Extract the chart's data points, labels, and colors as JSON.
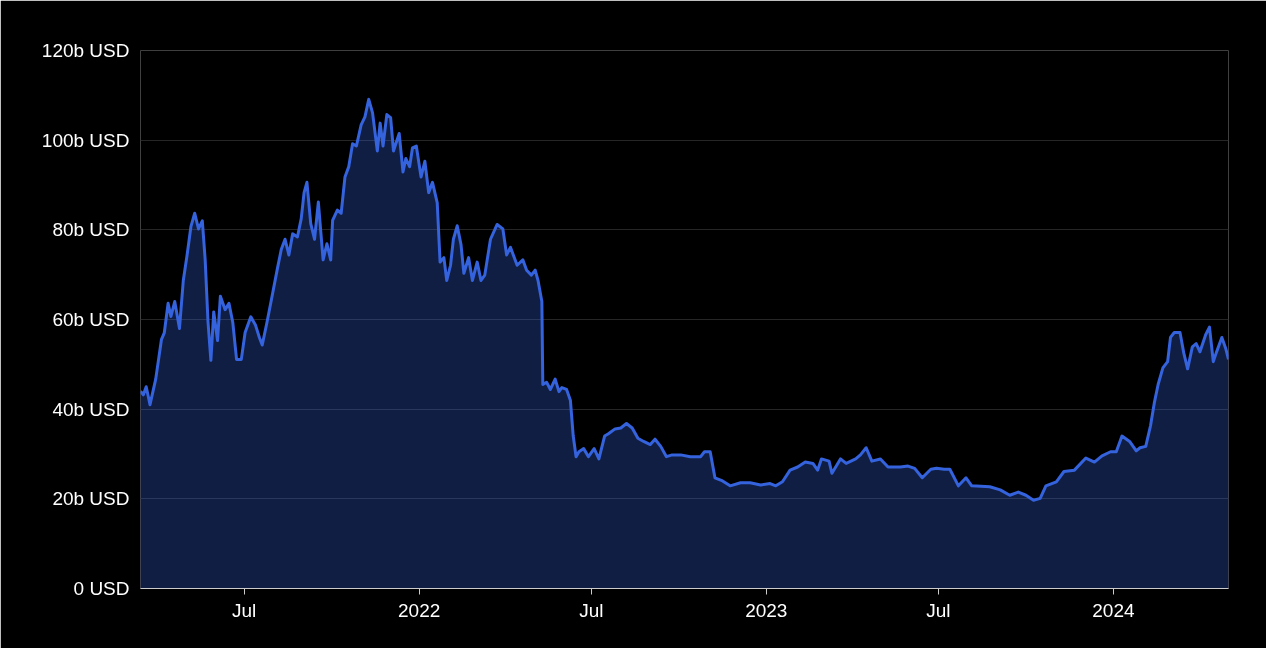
{
  "chart_data": {
    "type": "area",
    "grid": "y",
    "xlim": [
      "2021-03-14",
      "2024-05-01"
    ],
    "xticks": [
      {
        "value": "2021-07-01",
        "label": "Jul"
      },
      {
        "value": "2022-01-01",
        "label": "2022"
      },
      {
        "value": "2022-07-01",
        "label": "Jul"
      },
      {
        "value": "2023-01-01",
        "label": "2023"
      },
      {
        "value": "2023-07-01",
        "label": "Jul"
      },
      {
        "value": "2024-01-01",
        "label": "2024"
      }
    ],
    "ylim": [
      0,
      120
    ],
    "yticks": [
      {
        "value": 0,
        "label": "0 USD"
      },
      {
        "value": 20,
        "label": "20b USD"
      },
      {
        "value": 40,
        "label": "40b USD"
      },
      {
        "value": 60,
        "label": "60b USD"
      },
      {
        "value": 80,
        "label": "80b USD"
      },
      {
        "value": 100,
        "label": "100b USD"
      },
      {
        "value": 120,
        "label": "120b USD"
      }
    ],
    "x": [
      "2021-03-14",
      "2021-03-17",
      "2021-03-20",
      "2021-03-24",
      "2021-03-30",
      "2021-04-05",
      "2021-04-08",
      "2021-04-12",
      "2021-04-15",
      "2021-04-19",
      "2021-04-24",
      "2021-04-28",
      "2021-05-02",
      "2021-05-06",
      "2021-05-10",
      "2021-05-14",
      "2021-05-18",
      "2021-05-21",
      "2021-05-24",
      "2021-05-27",
      "2021-05-30",
      "2021-06-03",
      "2021-06-06",
      "2021-06-11",
      "2021-06-15",
      "2021-06-19",
      "2021-06-23",
      "2021-06-28",
      "2021-07-02",
      "2021-07-08",
      "2021-07-13",
      "2021-07-17",
      "2021-07-20",
      "2021-07-25",
      "2021-07-31",
      "2021-08-05",
      "2021-08-09",
      "2021-08-13",
      "2021-08-17",
      "2021-08-21",
      "2021-08-26",
      "2021-08-30",
      "2021-09-02",
      "2021-09-05",
      "2021-09-09",
      "2021-09-13",
      "2021-09-17",
      "2021-09-22",
      "2021-09-26",
      "2021-09-30",
      "2021-10-02",
      "2021-10-07",
      "2021-10-11",
      "2021-10-15",
      "2021-10-19",
      "2021-10-23",
      "2021-10-27",
      "2021-11-01",
      "2021-11-05",
      "2021-11-09",
      "2021-11-13",
      "2021-11-18",
      "2021-11-21",
      "2021-11-24",
      "2021-11-28",
      "2021-12-02",
      "2021-12-05",
      "2021-12-11",
      "2021-12-15",
      "2021-12-18",
      "2021-12-22",
      "2021-12-25",
      "2021-12-29",
      "2022-01-03",
      "2022-01-07",
      "2022-01-11",
      "2022-01-15",
      "2022-01-20",
      "2022-01-23",
      "2022-01-27",
      "2022-01-30",
      "2022-02-03",
      "2022-02-06",
      "2022-02-10",
      "2022-02-14",
      "2022-02-17",
      "2022-02-22",
      "2022-02-26",
      "2022-03-03",
      "2022-03-07",
      "2022-03-11",
      "2022-03-17",
      "2022-03-24",
      "2022-03-30",
      "2022-04-03",
      "2022-04-07",
      "2022-04-14",
      "2022-04-20",
      "2022-04-24",
      "2022-04-29",
      "2022-05-03",
      "2022-05-06",
      "2022-05-10",
      "2022-05-11",
      "2022-05-15",
      "2022-05-19",
      "2022-05-24",
      "2022-05-28",
      "2022-05-31",
      "2022-06-05",
      "2022-06-09",
      "2022-06-12",
      "2022-06-15",
      "2022-06-18",
      "2022-06-23",
      "2022-06-28",
      "2022-07-04",
      "2022-07-09",
      "2022-07-15",
      "2022-07-19",
      "2022-07-26",
      "2022-08-01",
      "2022-08-07",
      "2022-08-13",
      "2022-08-19",
      "2022-08-25",
      "2022-09-01",
      "2022-09-06",
      "2022-09-12",
      "2022-09-18",
      "2022-09-24",
      "2022-10-03",
      "2022-10-13",
      "2022-10-24",
      "2022-10-28",
      "2022-11-03",
      "2022-11-08",
      "2022-11-16",
      "2022-11-24",
      "2022-12-05",
      "2022-12-15",
      "2022-12-26",
      "2023-01-05",
      "2023-01-11",
      "2023-01-18",
      "2023-01-26",
      "2023-02-03",
      "2023-02-11",
      "2023-02-19",
      "2023-02-24",
      "2023-02-28",
      "2023-03-08",
      "2023-03-11",
      "2023-03-20",
      "2023-03-26",
      "2023-04-05",
      "2023-04-10",
      "2023-04-16",
      "2023-04-22",
      "2023-05-01",
      "2023-05-09",
      "2023-05-22",
      "2023-05-30",
      "2023-06-06",
      "2023-06-14",
      "2023-06-23",
      "2023-06-29",
      "2023-07-07",
      "2023-07-13",
      "2023-07-22",
      "2023-07-30",
      "2023-08-05",
      "2023-08-24",
      "2023-09-04",
      "2023-09-14",
      "2023-09-23",
      "2023-10-01",
      "2023-10-09",
      "2023-10-16",
      "2023-10-22",
      "2023-11-02",
      "2023-11-10",
      "2023-11-21",
      "2023-12-03",
      "2023-12-12",
      "2023-12-20",
      "2023-12-29",
      "2024-01-04",
      "2024-01-10",
      "2024-01-18",
      "2024-01-25",
      "2024-01-29",
      "2024-02-04",
      "2024-02-09",
      "2024-02-13",
      "2024-02-17",
      "2024-02-22",
      "2024-02-27",
      "2024-03-01",
      "2024-03-05",
      "2024-03-11",
      "2024-03-15",
      "2024-03-19",
      "2024-03-24",
      "2024-03-28",
      "2024-04-01",
      "2024-04-07",
      "2024-04-11",
      "2024-04-15",
      "2024-04-18",
      "2024-04-24",
      "2024-04-28",
      "2024-05-01"
    ],
    "series": [
      {
        "color": "#3463dd",
        "values": [
          44,
          43.2,
          45,
          41,
          46.7,
          55.5,
          57,
          63.6,
          60.7,
          64,
          58,
          68.7,
          74.4,
          80.7,
          83.7,
          80.2,
          82,
          73.3,
          59.4,
          50.9,
          61.7,
          55.3,
          65.2,
          62.2,
          63.6,
          59.4,
          51.1,
          51.1,
          57.1,
          60.6,
          58.7,
          56,
          54.3,
          59.4,
          65.9,
          71.4,
          75.6,
          77.9,
          74.4,
          79.1,
          78.4,
          82.5,
          88.3,
          90.6,
          81.4,
          77.9,
          86.2,
          73.3,
          76.9,
          73.3,
          82.1,
          84.4,
          83.7,
          91.8,
          94.1,
          99.2,
          98.7,
          103.4,
          105.2,
          109.1,
          106.1,
          97.6,
          103.8,
          98.7,
          105.7,
          105,
          97.6,
          101.5,
          92.9,
          95.9,
          94.1,
          98.3,
          98.7,
          91.8,
          95.3,
          88.3,
          90.6,
          86,
          72.8,
          73.8,
          68.7,
          72.1,
          77.9,
          80.9,
          76.7,
          70.3,
          73.8,
          68.7,
          72.8,
          68.7,
          69.9,
          77.9,
          81.2,
          80.2,
          74.4,
          76.1,
          72.1,
          73.3,
          71,
          69.9,
          71,
          68.7,
          64,
          45.5,
          46,
          44.4,
          46.7,
          43.9,
          44.8,
          44.4,
          42,
          34,
          29.4,
          30.5,
          31.2,
          29.4,
          31.2,
          28.9,
          34,
          34.5,
          35.6,
          35.8,
          36.8,
          35.8,
          33.5,
          32.8,
          32.1,
          33.3,
          31.7,
          29.4,
          29.8,
          29.8,
          29.4,
          29.4,
          30.5,
          30.5,
          24.7,
          24,
          22.9,
          23.6,
          23.6,
          23.1,
          23.4,
          22.9,
          23.8,
          26.4,
          27.1,
          28.2,
          27.9,
          26.4,
          28.9,
          28.4,
          25.7,
          28.9,
          27.9,
          28.9,
          29.8,
          31.4,
          28.4,
          28.9,
          27.1,
          27.1,
          27.3,
          26.8,
          24.7,
          26.6,
          26.8,
          26.6,
          26.6,
          22.9,
          24.7,
          22.9,
          22.7,
          22,
          20.8,
          21.5,
          20.8,
          19.7,
          20.1,
          22.9,
          23.8,
          26.1,
          26.4,
          29.1,
          28.2,
          29.6,
          30.5,
          30.5,
          34,
          32.8,
          30.7,
          31.4,
          31.7,
          36.3,
          41.4,
          45.5,
          49.2,
          50.6,
          56,
          57.1,
          57.1,
          52.5,
          49,
          53.9,
          54.6,
          52.8,
          56.6,
          58.3,
          50.6,
          52.5,
          56,
          53.6,
          51.1
        ]
      }
    ]
  }
}
